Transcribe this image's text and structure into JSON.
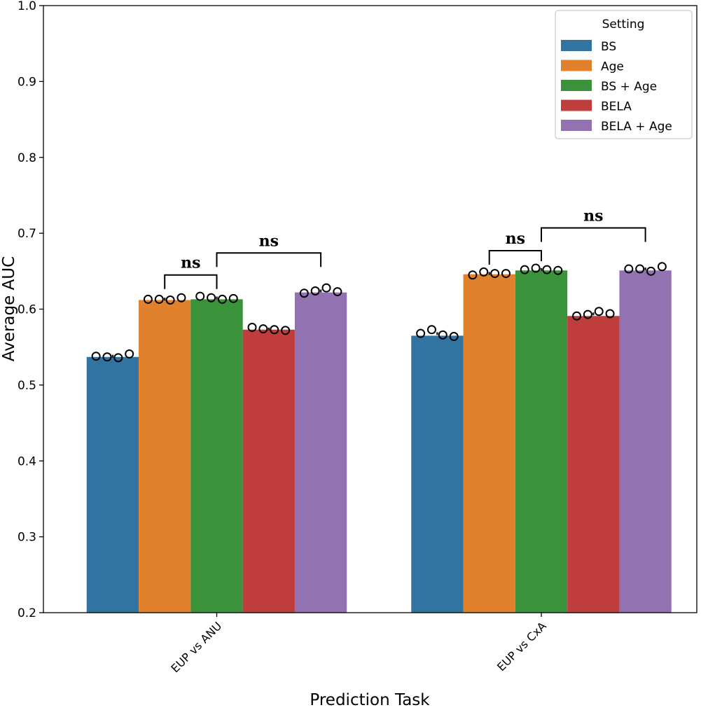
{
  "chart_data": {
    "type": "bar",
    "xlabel": "Prediction Task",
    "ylabel": "Average AUC",
    "ylim": [
      0.2,
      1.0
    ],
    "yticks": [
      "0.2",
      "0.3",
      "0.4",
      "0.5",
      "0.6",
      "0.7",
      "0.8",
      "0.9",
      "1.0"
    ],
    "categories": [
      "EUP vs ANU",
      "EUP vs CxA"
    ],
    "legend": {
      "title": "Setting",
      "placement": "top-right"
    },
    "series": [
      {
        "name": "BS",
        "color": "#3274a1",
        "values": [
          0.537,
          0.565
        ],
        "points": [
          [
            0.538,
            0.537,
            0.536,
            0.541
          ],
          [
            0.568,
            0.573,
            0.566,
            0.564
          ]
        ]
      },
      {
        "name": "Age",
        "color": "#e1812c",
        "values": [
          0.612,
          0.646
        ],
        "points": [
          [
            0.613,
            0.613,
            0.612,
            0.615
          ],
          [
            0.645,
            0.649,
            0.647,
            0.647
          ]
        ]
      },
      {
        "name": "BS + Age",
        "color": "#3a923a",
        "values": [
          0.613,
          0.651
        ],
        "points": [
          [
            0.617,
            0.615,
            0.613,
            0.614
          ],
          [
            0.652,
            0.654,
            0.652,
            0.651
          ]
        ]
      },
      {
        "name": "BELA",
        "color": "#c03d3e",
        "values": [
          0.573,
          0.591
        ],
        "points": [
          [
            0.576,
            0.574,
            0.573,
            0.572
          ],
          [
            0.591,
            0.593,
            0.597,
            0.594
          ]
        ]
      },
      {
        "name": "BELA + Age",
        "color": "#9372b2",
        "values": [
          0.622,
          0.651
        ],
        "points": [
          [
            0.621,
            0.624,
            0.628,
            0.623
          ],
          [
            0.653,
            0.653,
            0.65,
            0.656
          ]
        ]
      }
    ],
    "annotations": [
      {
        "category": "EUP vs ANU",
        "from": "Age",
        "to": "BS + Age",
        "label": "ns",
        "level": 0.645
      },
      {
        "category": "EUP vs ANU",
        "from": "BS + Age",
        "to": "BELA + Age",
        "label": "ns",
        "level": 0.674
      },
      {
        "category": "EUP vs CxA",
        "from": "Age",
        "to": "BS + Age",
        "label": "ns",
        "level": 0.677
      },
      {
        "category": "EUP vs CxA",
        "from": "BS + Age",
        "to": "BELA + Age",
        "label": "ns",
        "level": 0.707
      }
    ],
    "grid": false
  }
}
